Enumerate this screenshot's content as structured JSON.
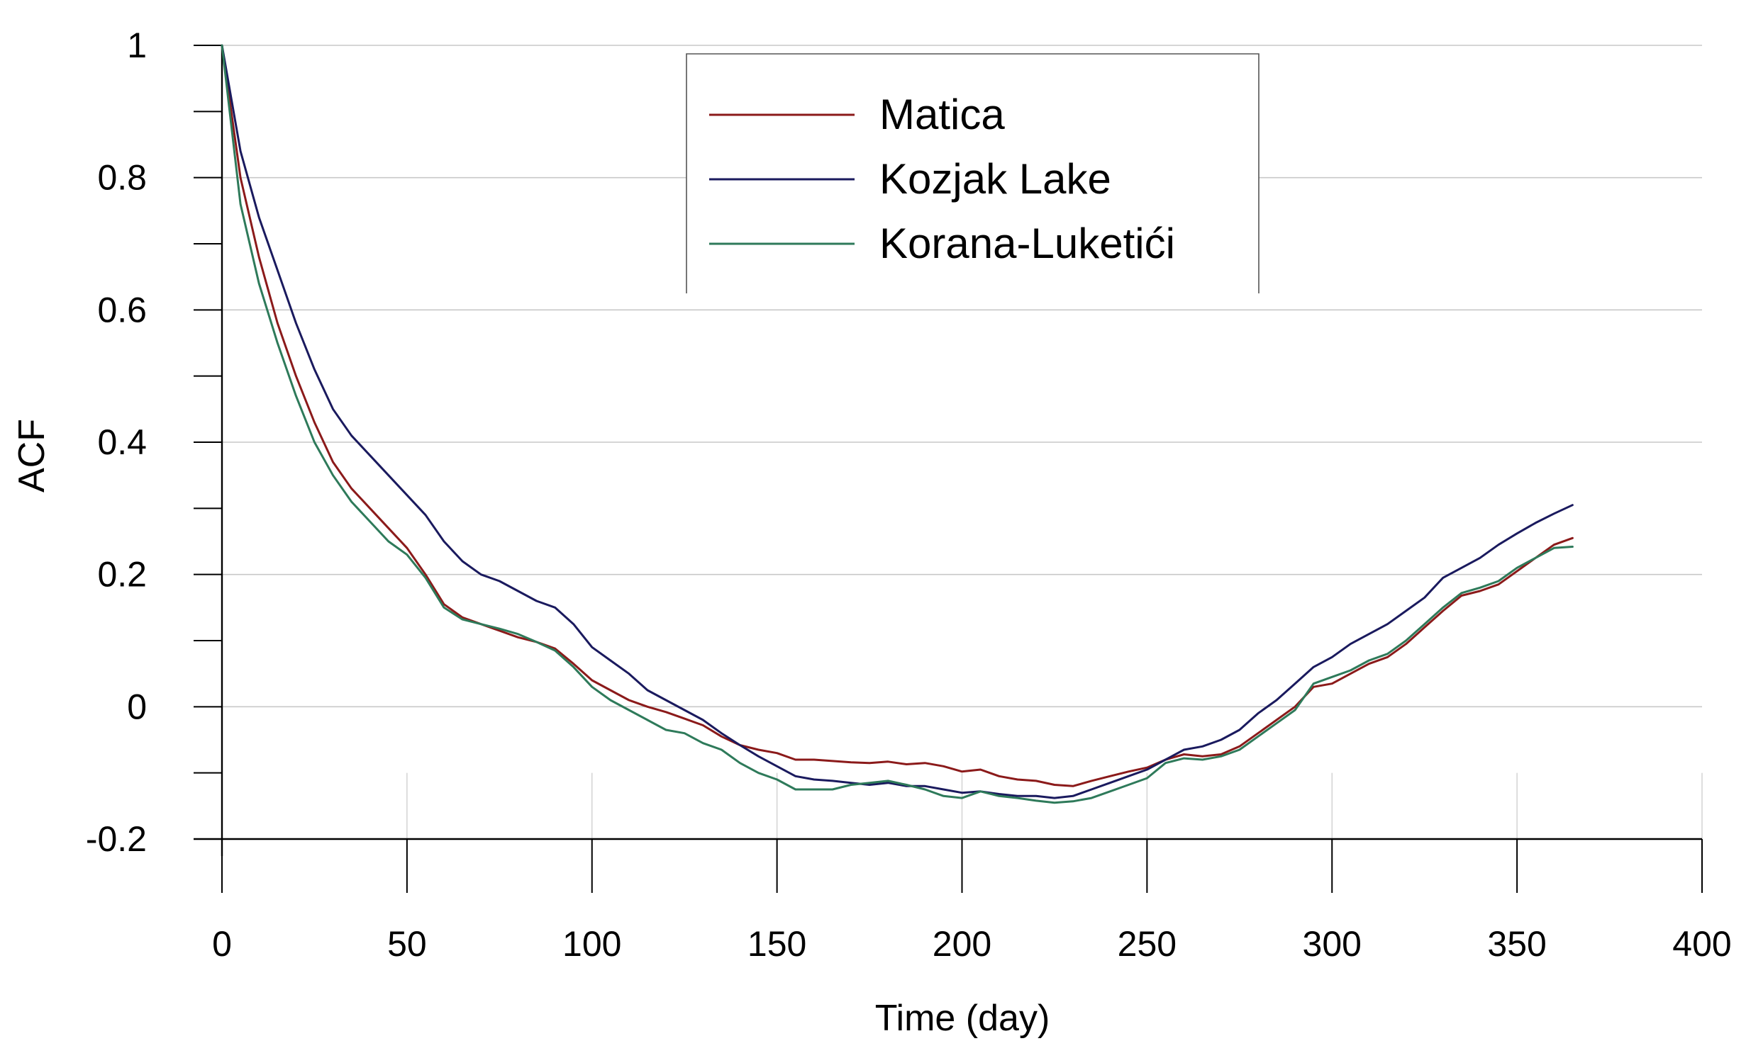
{
  "chart_data": {
    "type": "line",
    "title": "",
    "xlabel": "Time (day)",
    "ylabel": "ACF",
    "xlim": [
      0,
      400
    ],
    "ylim": [
      -0.2,
      1
    ],
    "xticks": [
      0,
      50,
      100,
      150,
      200,
      250,
      300,
      350,
      400
    ],
    "xtick_labels": [
      "0",
      "50",
      "100",
      "150",
      "200",
      "250",
      "300",
      "350",
      "400"
    ],
    "yticks": [
      -0.2,
      0,
      0.2,
      0.4,
      0.6,
      0.8,
      1
    ],
    "ytick_labels": [
      "-0.2",
      "0",
      "0.2",
      "0.4",
      "0.6",
      "0.8",
      "1"
    ],
    "y_minor_step": 0.1,
    "grid": "horizontal at major y ticks",
    "legend_position": "top-center",
    "series": [
      {
        "name": "Matica",
        "color": "#8b1a1a",
        "x": [
          0,
          5,
          10,
          15,
          20,
          25,
          30,
          35,
          40,
          45,
          50,
          55,
          60,
          65,
          70,
          75,
          80,
          85,
          90,
          95,
          100,
          105,
          110,
          115,
          120,
          125,
          130,
          135,
          140,
          145,
          150,
          155,
          160,
          165,
          170,
          175,
          180,
          185,
          190,
          195,
          200,
          205,
          210,
          215,
          220,
          225,
          230,
          235,
          240,
          245,
          250,
          255,
          260,
          265,
          270,
          275,
          280,
          285,
          290,
          295,
          300,
          305,
          310,
          315,
          320,
          325,
          330,
          335,
          340,
          345,
          350,
          355,
          360,
          365
        ],
        "y": [
          1.0,
          0.8,
          0.68,
          0.58,
          0.5,
          0.43,
          0.37,
          0.33,
          0.3,
          0.27,
          0.24,
          0.2,
          0.155,
          0.135,
          0.125,
          0.115,
          0.105,
          0.098,
          0.088,
          0.065,
          0.04,
          0.025,
          0.01,
          0.0,
          -0.008,
          -0.018,
          -0.028,
          -0.045,
          -0.058,
          -0.065,
          -0.07,
          -0.08,
          -0.08,
          -0.082,
          -0.084,
          -0.085,
          -0.083,
          -0.087,
          -0.085,
          -0.09,
          -0.098,
          -0.095,
          -0.105,
          -0.11,
          -0.112,
          -0.118,
          -0.12,
          -0.112,
          -0.105,
          -0.098,
          -0.092,
          -0.08,
          -0.072,
          -0.075,
          -0.072,
          -0.06,
          -0.04,
          -0.02,
          0.0,
          0.03,
          0.035,
          0.05,
          0.065,
          0.075,
          0.095,
          0.12,
          0.145,
          0.168,
          0.175,
          0.185,
          0.205,
          0.225,
          0.245,
          0.255
        ]
      },
      {
        "name": "Kozjak Lake",
        "color": "#1a1a5e",
        "x": [
          0,
          5,
          10,
          15,
          20,
          25,
          30,
          35,
          40,
          45,
          50,
          55,
          60,
          65,
          70,
          75,
          80,
          85,
          90,
          95,
          100,
          105,
          110,
          115,
          120,
          125,
          130,
          135,
          140,
          145,
          150,
          155,
          160,
          165,
          170,
          175,
          180,
          185,
          190,
          195,
          200,
          205,
          210,
          215,
          220,
          225,
          230,
          235,
          240,
          245,
          250,
          255,
          260,
          265,
          270,
          275,
          280,
          285,
          290,
          295,
          300,
          305,
          310,
          315,
          320,
          325,
          330,
          335,
          340,
          345,
          350,
          355,
          360,
          365
        ],
        "y": [
          1.0,
          0.84,
          0.74,
          0.66,
          0.58,
          0.51,
          0.45,
          0.41,
          0.38,
          0.35,
          0.32,
          0.29,
          0.25,
          0.22,
          0.2,
          0.19,
          0.175,
          0.16,
          0.15,
          0.125,
          0.09,
          0.07,
          0.05,
          0.025,
          0.01,
          -0.005,
          -0.02,
          -0.04,
          -0.058,
          -0.075,
          -0.09,
          -0.105,
          -0.11,
          -0.112,
          -0.115,
          -0.118,
          -0.115,
          -0.12,
          -0.12,
          -0.125,
          -0.13,
          -0.128,
          -0.132,
          -0.135,
          -0.135,
          -0.138,
          -0.135,
          -0.125,
          -0.115,
          -0.105,
          -0.095,
          -0.08,
          -0.065,
          -0.06,
          -0.05,
          -0.035,
          -0.01,
          0.01,
          0.035,
          0.06,
          0.075,
          0.095,
          0.11,
          0.125,
          0.145,
          0.165,
          0.195,
          0.21,
          0.225,
          0.245,
          0.262,
          0.278,
          0.292,
          0.305
        ]
      },
      {
        "name": "Korana-Luketići",
        "color": "#2e7a5a",
        "x": [
          0,
          5,
          10,
          15,
          20,
          25,
          30,
          35,
          40,
          45,
          50,
          55,
          60,
          65,
          70,
          75,
          80,
          85,
          90,
          95,
          100,
          105,
          110,
          115,
          120,
          125,
          130,
          135,
          140,
          145,
          150,
          155,
          160,
          165,
          170,
          175,
          180,
          185,
          190,
          195,
          200,
          205,
          210,
          215,
          220,
          225,
          230,
          235,
          240,
          245,
          250,
          255,
          260,
          265,
          270,
          275,
          280,
          285,
          290,
          295,
          300,
          305,
          310,
          315,
          320,
          325,
          330,
          335,
          340,
          345,
          350,
          355,
          360,
          365
        ],
        "y": [
          1.0,
          0.76,
          0.64,
          0.55,
          0.47,
          0.4,
          0.35,
          0.31,
          0.28,
          0.25,
          0.23,
          0.195,
          0.15,
          0.132,
          0.125,
          0.118,
          0.11,
          0.098,
          0.085,
          0.06,
          0.03,
          0.01,
          -0.005,
          -0.02,
          -0.035,
          -0.04,
          -0.055,
          -0.065,
          -0.085,
          -0.1,
          -0.11,
          -0.125,
          -0.125,
          -0.125,
          -0.118,
          -0.115,
          -0.112,
          -0.118,
          -0.125,
          -0.135,
          -0.138,
          -0.128,
          -0.135,
          -0.138,
          -0.142,
          -0.145,
          -0.143,
          -0.138,
          -0.128,
          -0.118,
          -0.108,
          -0.085,
          -0.078,
          -0.08,
          -0.075,
          -0.065,
          -0.045,
          -0.025,
          -0.005,
          0.035,
          0.045,
          0.055,
          0.07,
          0.08,
          0.1,
          0.125,
          0.15,
          0.172,
          0.18,
          0.19,
          0.21,
          0.225,
          0.24,
          0.242
        ]
      }
    ]
  }
}
